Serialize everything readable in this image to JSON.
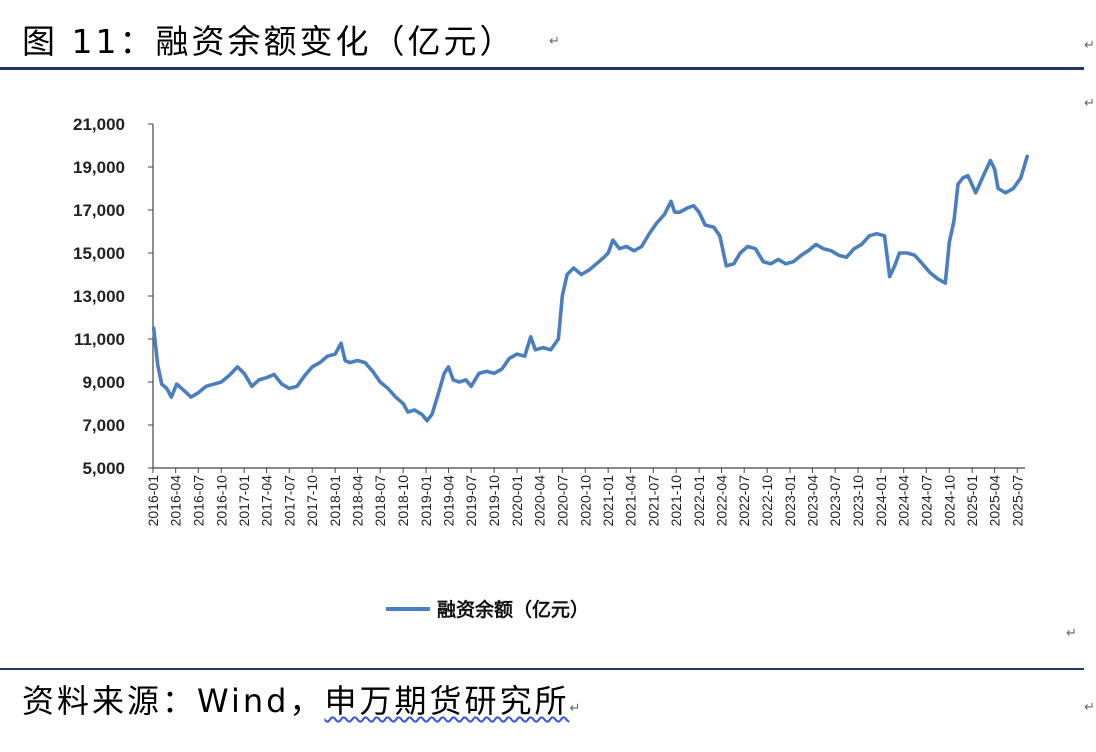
{
  "header": {
    "title": "图 11：融资余额变化（亿元）",
    "return_mark": "↵"
  },
  "footer": {
    "source_prefix": "资料来源：Wind，",
    "source_org": "申万期货研究所",
    "return_mark": "↵"
  },
  "colors": {
    "line": "#4a7ebf",
    "rule": "#1f3864",
    "axis": "#444444"
  },
  "chart_data": {
    "type": "line",
    "title": "",
    "xlabel": "",
    "ylabel": "",
    "ylim": [
      5000,
      21000
    ],
    "y_ticks": [
      5000,
      7000,
      9000,
      11000,
      13000,
      15000,
      17000,
      19000,
      21000
    ],
    "y_tick_labels": [
      "5,000",
      "7,000",
      "9,000",
      "11,000",
      "13,000",
      "15,000",
      "17,000",
      "19,000",
      "21,000"
    ],
    "x_tick_labels": [
      "2016-01",
      "2016-04",
      "2016-07",
      "2016-10",
      "2017-01",
      "2017-04",
      "2017-07",
      "2017-10",
      "2018-01",
      "2018-04",
      "2018-07",
      "2018-10",
      "2019-01",
      "2019-04",
      "2019-07",
      "2019-10",
      "2020-01",
      "2020-04",
      "2020-07",
      "2020-10",
      "2021-01",
      "2021-04",
      "2021-07",
      "2021-10",
      "2022-01",
      "2022-04",
      "2022-07",
      "2022-10",
      "2023-01",
      "2023-04",
      "2023-07",
      "2023-10",
      "2024-01",
      "2024-04",
      "2024-07",
      "2024-10",
      "2025-01",
      "2025-04",
      "2025-07"
    ],
    "x_range": [
      "2016-01",
      "2025-08"
    ],
    "grid": false,
    "legend": {
      "position": "bottom-center"
    },
    "series": [
      {
        "name": "融资余额（亿元）",
        "points": [
          [
            "2016-01-04",
            11500
          ],
          [
            "2016-01-20",
            9800
          ],
          [
            "2016-02-05",
            8900
          ],
          [
            "2016-02-25",
            8700
          ],
          [
            "2016-03-15",
            8300
          ],
          [
            "2016-04-05",
            8900
          ],
          [
            "2016-05-05",
            8600
          ],
          [
            "2016-06-01",
            8300
          ],
          [
            "2016-07-01",
            8500
          ],
          [
            "2016-08-01",
            8800
          ],
          [
            "2016-09-01",
            8900
          ],
          [
            "2016-10-01",
            9000
          ],
          [
            "2016-11-01",
            9300
          ],
          [
            "2016-12-05",
            9700
          ],
          [
            "2017-01-01",
            9400
          ],
          [
            "2017-02-01",
            8800
          ],
          [
            "2017-03-01",
            9100
          ],
          [
            "2017-04-01",
            9200
          ],
          [
            "2017-05-01",
            9350
          ],
          [
            "2017-06-01",
            8900
          ],
          [
            "2017-07-01",
            8700
          ],
          [
            "2017-08-01",
            8800
          ],
          [
            "2017-09-01",
            9300
          ],
          [
            "2017-10-01",
            9700
          ],
          [
            "2017-11-01",
            9900
          ],
          [
            "2017-12-01",
            10200
          ],
          [
            "2018-01-01",
            10300
          ],
          [
            "2018-01-25",
            10800
          ],
          [
            "2018-02-10",
            10000
          ],
          [
            "2018-03-01",
            9900
          ],
          [
            "2018-04-01",
            10000
          ],
          [
            "2018-05-01",
            9900
          ],
          [
            "2018-06-01",
            9500
          ],
          [
            "2018-07-01",
            9000
          ],
          [
            "2018-08-01",
            8700
          ],
          [
            "2018-09-01",
            8300
          ],
          [
            "2018-10-01",
            8000
          ],
          [
            "2018-10-20",
            7600
          ],
          [
            "2018-11-15",
            7700
          ],
          [
            "2018-12-15",
            7500
          ],
          [
            "2019-01-05",
            7200
          ],
          [
            "2019-01-25",
            7500
          ],
          [
            "2019-02-15",
            8300
          ],
          [
            "2019-03-15",
            9400
          ],
          [
            "2019-04-01",
            9700
          ],
          [
            "2019-04-20",
            9100
          ],
          [
            "2019-05-15",
            9000
          ],
          [
            "2019-06-10",
            9100
          ],
          [
            "2019-07-01",
            8800
          ],
          [
            "2019-08-01",
            9400
          ],
          [
            "2019-09-01",
            9500
          ],
          [
            "2019-10-01",
            9400
          ],
          [
            "2019-11-01",
            9600
          ],
          [
            "2019-12-01",
            10100
          ],
          [
            "2020-01-01",
            10300
          ],
          [
            "2020-02-01",
            10200
          ],
          [
            "2020-02-25",
            11100
          ],
          [
            "2020-03-15",
            10500
          ],
          [
            "2020-04-15",
            10600
          ],
          [
            "2020-05-15",
            10500
          ],
          [
            "2020-06-15",
            11000
          ],
          [
            "2020-07-01",
            13000
          ],
          [
            "2020-07-20",
            14000
          ],
          [
            "2020-08-15",
            14300
          ],
          [
            "2020-09-15",
            14000
          ],
          [
            "2020-10-15",
            14200
          ],
          [
            "2020-11-15",
            14500
          ],
          [
            "2020-12-15",
            14800
          ],
          [
            "2021-01-01",
            15000
          ],
          [
            "2021-01-20",
            15600
          ],
          [
            "2021-02-15",
            15200
          ],
          [
            "2021-03-15",
            15300
          ],
          [
            "2021-04-15",
            15100
          ],
          [
            "2021-05-15",
            15300
          ],
          [
            "2021-06-15",
            15900
          ],
          [
            "2021-07-15",
            16400
          ],
          [
            "2021-08-15",
            16800
          ],
          [
            "2021-09-10",
            17400
          ],
          [
            "2021-09-25",
            16900
          ],
          [
            "2021-10-15",
            16900
          ],
          [
            "2021-11-15",
            17100
          ],
          [
            "2021-12-10",
            17200
          ],
          [
            "2022-01-01",
            16900
          ],
          [
            "2022-01-25",
            16300
          ],
          [
            "2022-03-01",
            16200
          ],
          [
            "2022-03-25",
            15800
          ],
          [
            "2022-04-20",
            14400
          ],
          [
            "2022-05-20",
            14500
          ],
          [
            "2022-06-15",
            15000
          ],
          [
            "2022-07-15",
            15300
          ],
          [
            "2022-08-15",
            15200
          ],
          [
            "2022-09-15",
            14600
          ],
          [
            "2022-10-15",
            14500
          ],
          [
            "2022-11-15",
            14700
          ],
          [
            "2022-12-15",
            14500
          ],
          [
            "2023-01-15",
            14600
          ],
          [
            "2023-02-15",
            14900
          ],
          [
            "2023-03-15",
            15100
          ],
          [
            "2023-04-15",
            15400
          ],
          [
            "2023-05-15",
            15200
          ],
          [
            "2023-06-15",
            15100
          ],
          [
            "2023-07-15",
            14900
          ],
          [
            "2023-08-15",
            14800
          ],
          [
            "2023-09-15",
            15200
          ],
          [
            "2023-10-15",
            15400
          ],
          [
            "2023-11-15",
            15800
          ],
          [
            "2023-12-15",
            15900
          ],
          [
            "2024-01-15",
            15800
          ],
          [
            "2024-02-05",
            13900
          ],
          [
            "2024-02-25",
            14400
          ],
          [
            "2024-03-15",
            15000
          ],
          [
            "2024-04-15",
            15000
          ],
          [
            "2024-05-15",
            14900
          ],
          [
            "2024-06-15",
            14500
          ],
          [
            "2024-07-15",
            14100
          ],
          [
            "2024-08-15",
            13800
          ],
          [
            "2024-09-15",
            13600
          ],
          [
            "2024-10-01",
            15500
          ],
          [
            "2024-10-20",
            16500
          ],
          [
            "2024-11-05",
            18200
          ],
          [
            "2024-11-25",
            18500
          ],
          [
            "2024-12-15",
            18600
          ],
          [
            "2025-01-15",
            17800
          ],
          [
            "2025-02-15",
            18600
          ],
          [
            "2025-03-15",
            19300
          ],
          [
            "2025-04-01",
            18900
          ],
          [
            "2025-04-15",
            18000
          ],
          [
            "2025-05-15",
            17800
          ],
          [
            "2025-06-15",
            18000
          ],
          [
            "2025-07-15",
            18500
          ],
          [
            "2025-08-10",
            19500
          ]
        ]
      }
    ]
  }
}
